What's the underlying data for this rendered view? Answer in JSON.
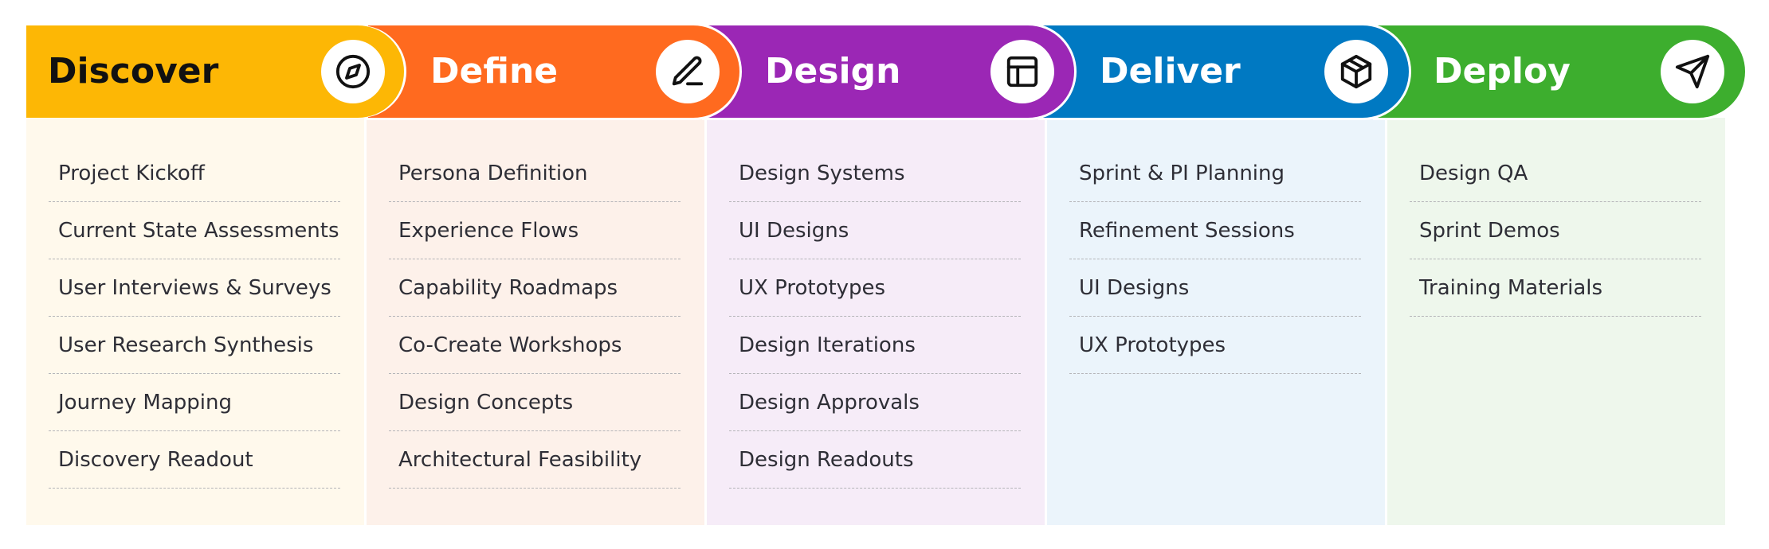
{
  "colors": {
    "discover": "#FDB705",
    "define": "#FF6A1F",
    "design": "#9B27B5",
    "deliver": "#0079C2",
    "deploy": "#3DAE2E",
    "discover_bg": "#FFF9EC",
    "define_bg": "#FDF1EA",
    "design_bg": "#F6ECF8",
    "deliver_bg": "#EBF4FB",
    "deploy_bg": "#EEF7EC"
  },
  "phases": [
    {
      "title": "Discover",
      "icon": "compass-icon",
      "items": [
        "Project Kickoff",
        "Current State Assessments",
        "User Interviews & Surveys",
        "User Research Synthesis",
        "Journey Mapping",
        "Discovery Readout"
      ]
    },
    {
      "title": "Define",
      "icon": "pen-icon",
      "items": [
        "Persona Definition",
        "Experience Flows",
        "Capability Roadmaps",
        "Co-Create Workshops",
        "Design Concepts",
        "Architectural Feasibility"
      ]
    },
    {
      "title": "Design",
      "icon": "layout-icon",
      "items": [
        "Design Systems",
        "UI Designs",
        "UX Prototypes",
        "Design Iterations",
        "Design Approvals",
        "Design Readouts"
      ]
    },
    {
      "title": "Deliver",
      "icon": "package-icon",
      "items": [
        "Sprint & PI Planning",
        "Refinement Sessions",
        "UI Designs",
        "UX Prototypes"
      ]
    },
    {
      "title": "Deploy",
      "icon": "send-icon",
      "items": [
        "Design QA",
        "Sprint Demos",
        "Training Materials"
      ]
    }
  ]
}
